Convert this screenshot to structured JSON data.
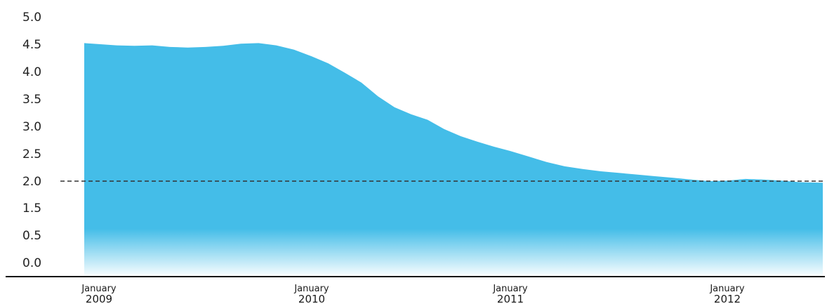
{
  "chart_data": {
    "type": "area",
    "title": "",
    "xlabel": "",
    "ylabel": "",
    "ylim": [
      0,
      5
    ],
    "xlim": [
      "2009-01",
      "2012-06"
    ],
    "grid": false,
    "legend": "none",
    "y_ticks": [
      "5.0",
      "4.5",
      "4.0",
      "3.5",
      "3.0",
      "2.5",
      "2.0",
      "1.5",
      "0.5",
      "0.0"
    ],
    "y_tick_values": [
      5.0,
      4.5,
      4.0,
      3.5,
      3.0,
      2.5,
      2.0,
      1.5,
      0.5,
      0.0
    ],
    "x_ticks": [
      {
        "date": "2009-01",
        "line1": "January",
        "line2": "2009"
      },
      {
        "date": "2010-01",
        "line1": "January",
        "line2": "2010"
      },
      {
        "date": "2011-01",
        "line1": "January",
        "line2": "2011"
      },
      {
        "date": "2012-01",
        "line1": "January",
        "line2": "2012"
      }
    ],
    "reference_line": {
      "y": 2.0,
      "style": "dashed",
      "color": "#333333"
    },
    "area_color": "#44bde8",
    "series": [
      {
        "x": [
          "2009-01",
          "2009-02",
          "2009-03",
          "2009-04",
          "2009-05",
          "2009-06",
          "2009-07",
          "2009-08",
          "2009-09",
          "2009-10",
          "2009-11",
          "2009-12",
          "2010-01",
          "2010-02",
          "2010-03",
          "2010-04",
          "2010-05",
          "2010-06",
          "2010-07",
          "2010-08",
          "2010-09",
          "2010-10",
          "2010-11",
          "2010-12",
          "2011-01",
          "2011-02",
          "2011-03",
          "2011-04",
          "2011-05",
          "2011-06",
          "2011-07",
          "2011-08",
          "2011-09",
          "2011-10",
          "2011-11",
          "2011-12",
          "2012-01",
          "2012-02",
          "2012-03",
          "2012-04",
          "2012-05",
          "2012-06"
        ],
        "values": [
          4.52,
          4.48,
          4.47,
          4.48,
          4.45,
          4.44,
          4.45,
          4.47,
          4.51,
          4.52,
          4.48,
          4.4,
          4.28,
          4.15,
          3.98,
          3.8,
          3.55,
          3.35,
          3.22,
          3.12,
          2.95,
          2.82,
          2.72,
          2.63,
          2.55,
          2.45,
          2.35,
          2.27,
          2.22,
          2.18,
          2.15,
          2.12,
          2.09,
          2.06,
          2.03,
          2.0,
          2.01,
          2.04,
          2.03,
          2.01,
          1.98,
          1.97
        ]
      }
    ]
  }
}
